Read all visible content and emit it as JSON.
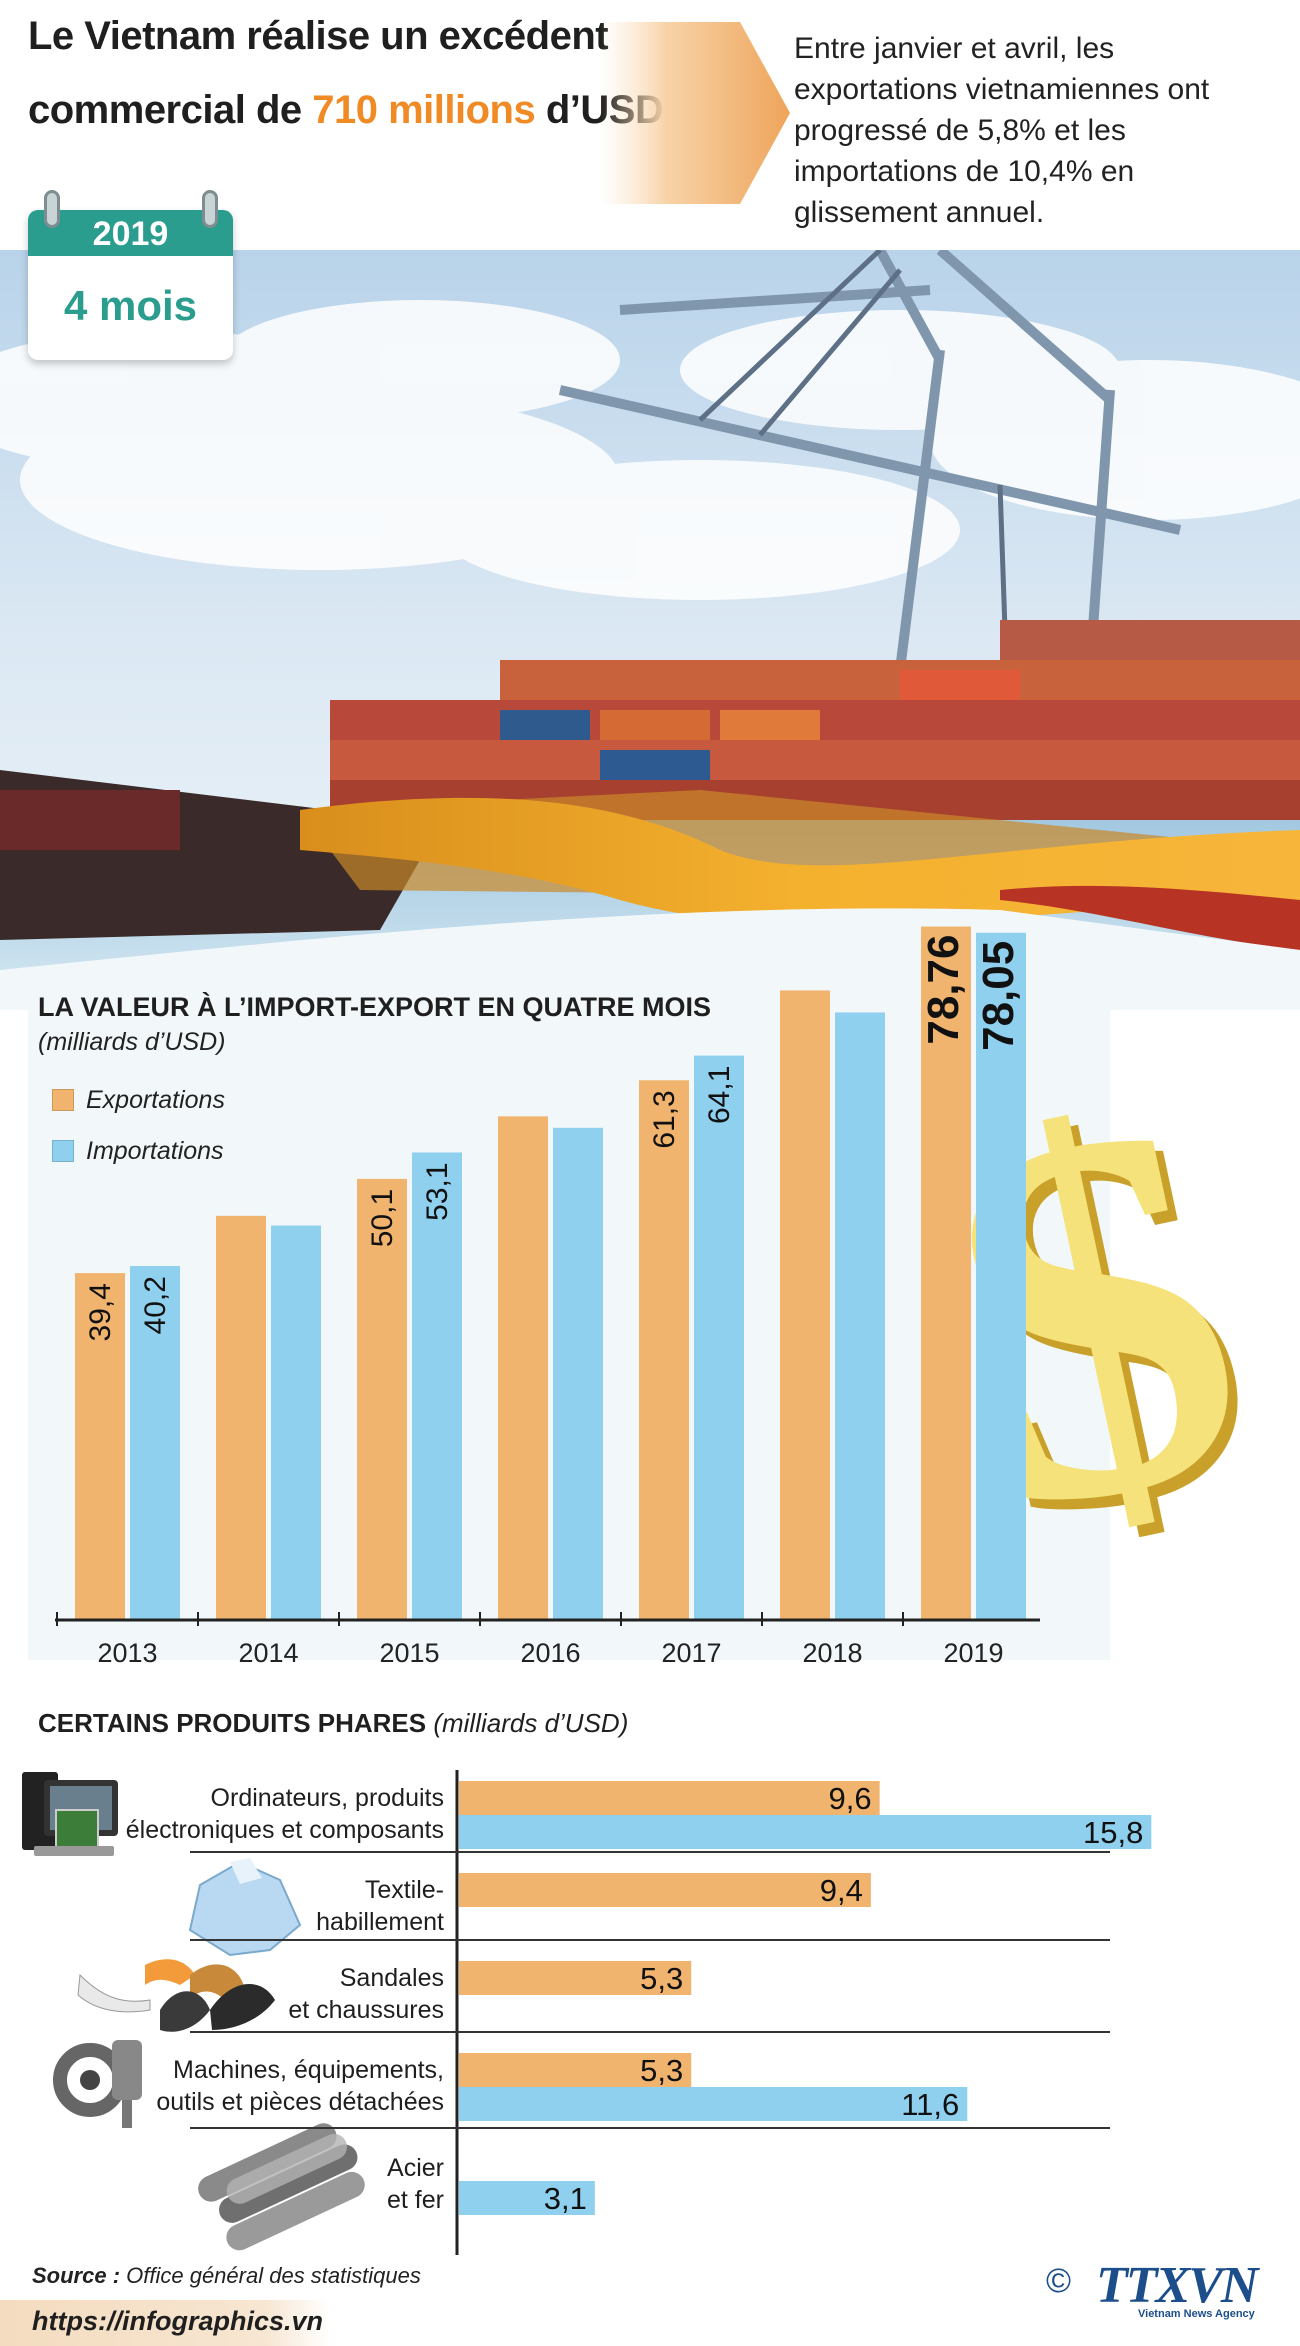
{
  "header": {
    "title_line1": "Le Vietnam réalise un excédent",
    "title_line2_prefix": "commercial de ",
    "title_line2_highlight": "710 millions",
    "title_line2_suffix": " d’USD",
    "intro": "Entre janvier et avril, les exportations vietnamiennes ont progressé de 5,8% et les importations de 10,4% en glissement annuel.",
    "calendar_year": "2019",
    "calendar_period": "4 mois"
  },
  "colors": {
    "export": "#f0b46e",
    "import": "#8fd0ee",
    "accent_orange": "#f08a24",
    "calendar_teal": "#2a9d8f",
    "logo_blue": "#1b4e8a"
  },
  "chart_data": [
    {
      "type": "bar",
      "title": "LA VALEUR À L’IMPORT-EXPORT EN QUATRE MOIS",
      "subtitle": "(milliards d’USD)",
      "categories": [
        "2013",
        "2014",
        "2015",
        "2016",
        "2017",
        "2018",
        "2019"
      ],
      "series": [
        {
          "name": "Exportations",
          "values": [
            39.4,
            45.9,
            50.1,
            57.2,
            61.3,
            71.5,
            78.76
          ],
          "labels": [
            "39,4",
            "",
            "50,1",
            "",
            "61,3",
            "",
            "78,76"
          ]
        },
        {
          "name": "Importations",
          "values": [
            40.2,
            44.8,
            53.1,
            55.9,
            64.1,
            69.0,
            78.05
          ],
          "labels": [
            "40,2",
            "",
            "53,1",
            "",
            "64,1",
            "",
            "78,05"
          ]
        }
      ],
      "ylim": [
        0,
        82
      ],
      "xlabel": "",
      "ylabel": "",
      "grid": false,
      "legend_position": "top-left"
    },
    {
      "type": "bar",
      "orientation": "horizontal",
      "title": "CERTAINS PRODUITS PHARES",
      "subtitle": "(milliards d’USD)",
      "categories": [
        "Ordinateurs, produits\nélectroniques et composants",
        "Textile-\nhabillement",
        "Sandales\net chaussures",
        "Machines, équipements,\noutils et pièces détachées",
        "Acier\net fer"
      ],
      "series": [
        {
          "name": "Exportations",
          "values": [
            9.6,
            9.4,
            5.3,
            5.3,
            null
          ],
          "labels": [
            "9,6",
            "9,4",
            "5,3",
            "5,3",
            ""
          ]
        },
        {
          "name": "Importations",
          "values": [
            15.8,
            null,
            null,
            11.6,
            3.1
          ],
          "labels": [
            "15,8",
            "",
            "",
            "11,6",
            "3,1"
          ]
        }
      ],
      "xlim": [
        0,
        16.5
      ]
    }
  ],
  "footer": {
    "source_label": "Source :",
    "source_text": " Office général des statistiques",
    "url": "https://infographics.vn",
    "copyright": "©",
    "logo": "TTXVN",
    "logo_sub": "Vietnam News Agency"
  }
}
